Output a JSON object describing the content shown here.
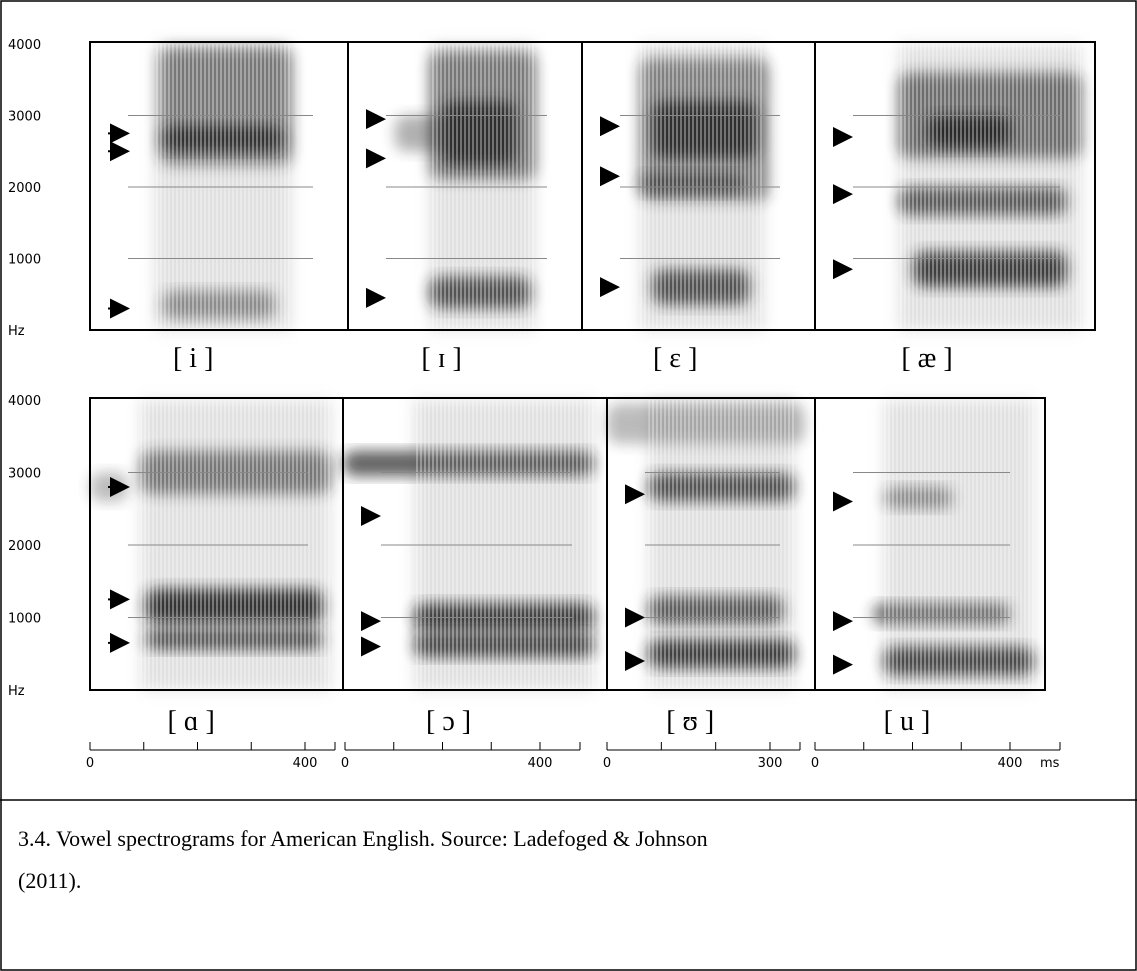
{
  "frequency_axis": {
    "labels": [
      "4000",
      "3000",
      "2000",
      "1000",
      "Hz"
    ]
  },
  "panels": [
    {
      "label": "[ i ]"
    },
    {
      "label": "[ ɪ ]"
    },
    {
      "label": "[ ɛ ]"
    },
    {
      "label": "[ æ ]"
    },
    {
      "label": "[ ɑ ]"
    },
    {
      "label": "[ ɔ ]"
    },
    {
      "label": "[ ʊ ]"
    },
    {
      "label": "[ u ]"
    }
  ],
  "time_axes": [
    {
      "labels": [
        "0",
        "400"
      ]
    },
    {
      "labels": [
        "0",
        "400"
      ]
    },
    {
      "labels": [
        "0",
        "300"
      ]
    },
    {
      "labels": [
        "0",
        "400"
      ]
    }
  ],
  "time_unit": "ms",
  "caption": {
    "lines": [
      "3.4. Vowel spectrograms for American English. Source: Ladefoged & Johnson",
      "(2011)."
    ]
  }
}
